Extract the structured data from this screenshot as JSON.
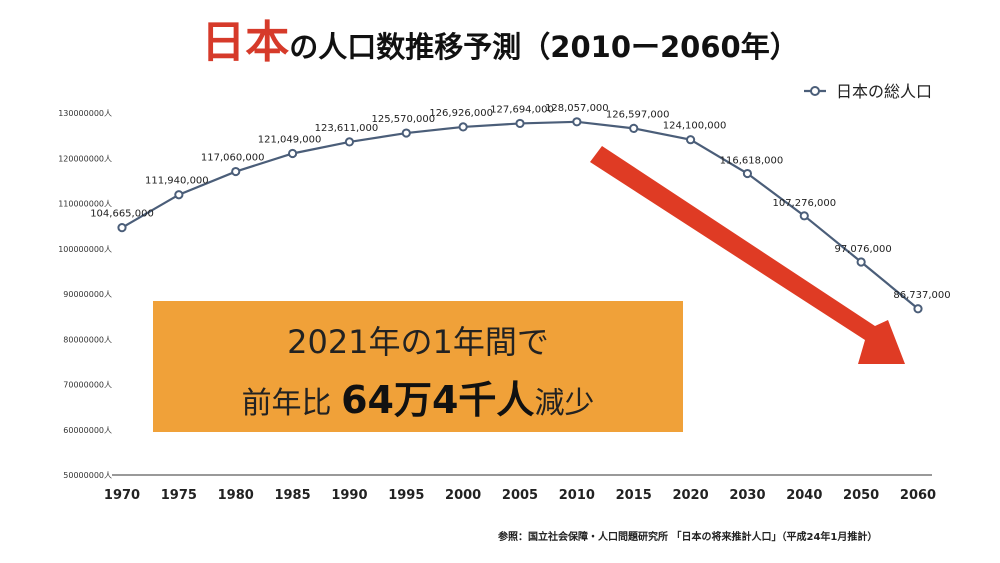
{
  "title": {
    "highlight": "日本",
    "rest": "の人口数推移予測（2010ー2060年）"
  },
  "legend": {
    "label": "日本の総人口"
  },
  "callout": {
    "line1": "2021年の1年間で",
    "line2_prefix": "前年比 ",
    "line2_bold": "64万4千人",
    "line2_suffix": "減少"
  },
  "source": "参照：国立社会保障・人口問題研究所 「日本の将来推計人口」（平成24年1月推計）",
  "colors": {
    "title_accent": "#d63a2a",
    "line": "#4b5e79",
    "callout_bg": "#f0a139",
    "arrow": "#df3b24"
  },
  "chart_data": {
    "type": "line",
    "categories": [
      "1970",
      "1975",
      "1980",
      "1985",
      "1990",
      "1995",
      "2000",
      "2005",
      "2010",
      "2015",
      "2020",
      "2030",
      "2040",
      "2050",
      "2060"
    ],
    "series": [
      {
        "name": "日本の総人口",
        "values": [
          104665000,
          111940000,
          117060000,
          121049000,
          123611000,
          125570000,
          126926000,
          127694000,
          128057000,
          126597000,
          124100000,
          116618000,
          107276000,
          97076000,
          86737000
        ],
        "labels": [
          "104,665,000",
          "111,940,000",
          "117,060,000",
          "121,049,000",
          "123,611,000",
          "125,570,000",
          "126,926,000",
          "127,694,000",
          "128,057,000",
          "126,597,000",
          "124,100,000",
          "116,618,000",
          "107,276,000",
          "97,076,000",
          "86,737,000"
        ]
      }
    ],
    "y_ticks": [
      "50000000人",
      "60000000人",
      "70000000人",
      "80000000人",
      "90000000人",
      "100000000人",
      "110000000人",
      "120000000人",
      "130000000人"
    ],
    "ylim": [
      50000000,
      130000000
    ],
    "grid": false,
    "legend_position": "top-right"
  }
}
